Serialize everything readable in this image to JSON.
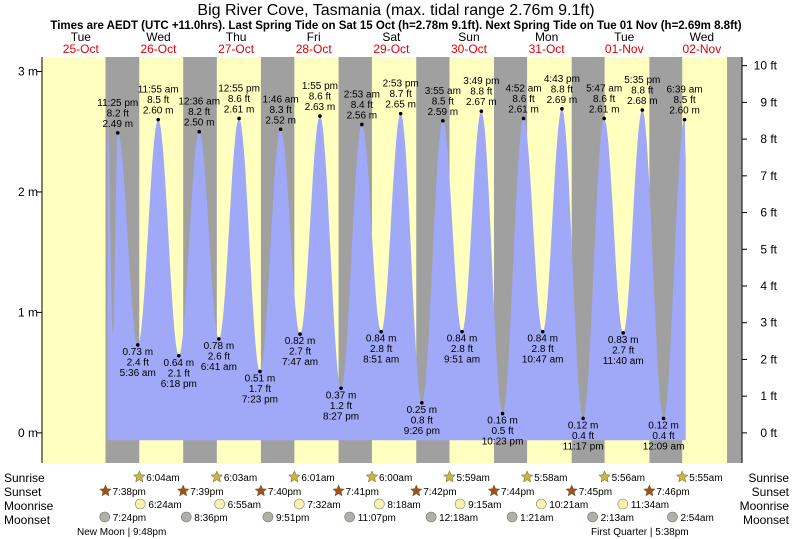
{
  "chart_data": {
    "type": "area",
    "title": "Big River Cove, Tasmania (max. tidal range 2.76m 9.1ft)",
    "subtitle": "Times are AEDT (UTC +11.0hrs). Last Spring Tide on Sat 15 Oct (h=2.78m 9.1ft). Next Spring Tide on Tue 01 Nov (h=2.69m 8.8ft)",
    "ylim_m": [
      -0.25,
      3.12
    ],
    "left_ticks": [
      "0 m",
      "1 m",
      "2 m",
      "3 m"
    ],
    "left_tick_values": [
      0,
      1,
      2,
      3
    ],
    "right_ticks": [
      "0 ft",
      "1 ft",
      "2 ft",
      "3 ft",
      "4 ft",
      "5 ft",
      "6 ft",
      "7 ft",
      "8 ft",
      "9 ft",
      "10 ft"
    ],
    "days": [
      {
        "dow": "Tue",
        "date": "25-Oct"
      },
      {
        "dow": "Wed",
        "date": "26-Oct"
      },
      {
        "dow": "Thu",
        "date": "27-Oct"
      },
      {
        "dow": "Fri",
        "date": "28-Oct"
      },
      {
        "dow": "Sat",
        "date": "29-Oct"
      },
      {
        "dow": "Sun",
        "date": "30-Oct"
      },
      {
        "dow": "Mon",
        "date": "31-Oct"
      },
      {
        "dow": "Tue",
        "date": "01-Nov"
      },
      {
        "dow": "Wed",
        "date": "02-Nov"
      }
    ],
    "tides": [
      {
        "type": "high",
        "t": 23.42,
        "h": 2.49,
        "time": "11:25 pm",
        "ft": "8.2 ft",
        "m": "2.49 m"
      },
      {
        "type": "low",
        "t": 29.6,
        "h": 0.73,
        "time": "5:36 am",
        "ft": "2.4 ft",
        "m": "0.73 m"
      },
      {
        "type": "high",
        "t": 35.92,
        "h": 2.6,
        "time": "11:55 am",
        "ft": "8.5 ft",
        "m": "2.60 m"
      },
      {
        "type": "low",
        "t": 42.3,
        "h": 0.64,
        "time": "6:18 pm",
        "ft": "2.1 ft",
        "m": "0.64 m"
      },
      {
        "type": "high",
        "t": 48.6,
        "h": 2.5,
        "time": "12:36 am",
        "ft": "8.2 ft",
        "m": "2.50 m"
      },
      {
        "type": "low",
        "t": 54.68,
        "h": 0.78,
        "time": "6:41 am",
        "ft": "2.6 ft",
        "m": "0.78 m"
      },
      {
        "type": "high",
        "t": 60.92,
        "h": 2.61,
        "time": "12:55 pm",
        "ft": "8.6 ft",
        "m": "2.61 m"
      },
      {
        "type": "low",
        "t": 67.38,
        "h": 0.51,
        "time": "7:23 pm",
        "ft": "1.7 ft",
        "m": "0.51 m"
      },
      {
        "type": "high",
        "t": 73.77,
        "h": 2.52,
        "time": "1:46 am",
        "ft": "8.3 ft",
        "m": "2.52 m"
      },
      {
        "type": "low",
        "t": 79.78,
        "h": 0.82,
        "time": "7:47 am",
        "ft": "2.7 ft",
        "m": "0.82 m"
      },
      {
        "type": "high",
        "t": 85.92,
        "h": 2.63,
        "time": "1:55 pm",
        "ft": "8.6 ft",
        "m": "2.63 m"
      },
      {
        "type": "low",
        "t": 92.45,
        "h": 0.37,
        "time": "8:27 pm",
        "ft": "1.2 ft",
        "m": "0.37 m"
      },
      {
        "type": "high",
        "t": 98.88,
        "h": 2.56,
        "time": "2:53 am",
        "ft": "8.4 ft",
        "m": "2.56 m"
      },
      {
        "type": "low",
        "t": 104.85,
        "h": 0.84,
        "time": "8:51 am",
        "ft": "2.8 ft",
        "m": "0.84 m"
      },
      {
        "type": "high",
        "t": 110.88,
        "h": 2.65,
        "time": "2:53 pm",
        "ft": "8.7 ft",
        "m": "2.65 m"
      },
      {
        "type": "low",
        "t": 117.43,
        "h": 0.25,
        "time": "9:26 pm",
        "ft": "0.8 ft",
        "m": "0.25 m"
      },
      {
        "type": "high",
        "t": 123.92,
        "h": 2.59,
        "time": "3:55 am",
        "ft": "8.5 ft",
        "m": "2.59 m"
      },
      {
        "type": "low",
        "t": 129.85,
        "h": 0.84,
        "time": "9:51 am",
        "ft": "2.8 ft",
        "m": "0.84 m"
      },
      {
        "type": "high",
        "t": 135.82,
        "h": 2.67,
        "time": "3:49 pm",
        "ft": "8.8 ft",
        "m": "2.67 m"
      },
      {
        "type": "low",
        "t": 142.38,
        "h": 0.16,
        "time": "10:23 pm",
        "ft": "0.5 ft",
        "m": "0.16 m"
      },
      {
        "type": "high",
        "t": 148.87,
        "h": 2.61,
        "time": "4:52 am",
        "ft": "8.6 ft",
        "m": "2.61 m"
      },
      {
        "type": "low",
        "t": 154.78,
        "h": 0.84,
        "time": "10:47 am",
        "ft": "2.8 ft",
        "m": "0.84 m"
      },
      {
        "type": "high",
        "t": 160.72,
        "h": 2.69,
        "time": "4:43 pm",
        "ft": "8.8 ft",
        "m": "2.69 m"
      },
      {
        "type": "low",
        "t": 167.28,
        "h": 0.12,
        "time": "11:17 pm",
        "ft": "0.4 ft",
        "m": "0.12 m"
      },
      {
        "type": "high",
        "t": 173.78,
        "h": 2.61,
        "time": "5:47 am",
        "ft": "8.6 ft",
        "m": "2.61 m"
      },
      {
        "type": "low",
        "t": 179.67,
        "h": 0.83,
        "time": "11:40 am",
        "ft": "2.7 ft",
        "m": "0.83 m"
      },
      {
        "type": "high",
        "t": 185.58,
        "h": 2.68,
        "time": "5:35 pm",
        "ft": "8.8 ft",
        "m": "2.68 m"
      },
      {
        "type": "low",
        "t": 192.15,
        "h": 0.12,
        "time": "12:09 am",
        "ft": "0.4 ft",
        "m": "0.12 m"
      },
      {
        "type": "high",
        "t": 198.65,
        "h": 2.6,
        "time": "6:39 am",
        "ft": "8.5 ft",
        "m": "2.60 m"
      }
    ],
    "night_spans": [
      [
        19.63,
        30.07
      ],
      [
        43.65,
        54.05
      ],
      [
        67.67,
        78.02
      ],
      [
        91.68,
        102.0
      ],
      [
        115.7,
        125.98
      ],
      [
        139.73,
        149.97
      ],
      [
        163.75,
        173.93
      ],
      [
        187.77,
        197.92
      ]
    ],
    "sunrise": [
      {
        "t": 30.07,
        "label": "6:04am"
      },
      {
        "t": 54.05,
        "label": "6:03am"
      },
      {
        "t": 78.02,
        "label": "6:01am"
      },
      {
        "t": 102.0,
        "label": "6:00am"
      },
      {
        "t": 125.98,
        "label": "5:59am"
      },
      {
        "t": 149.97,
        "label": "5:58am"
      },
      {
        "t": 173.93,
        "label": "5:56am"
      },
      {
        "t": 197.92,
        "label": "5:55am"
      }
    ],
    "sunset": [
      {
        "t": 19.63,
        "label": "7:38pm"
      },
      {
        "t": 43.65,
        "label": "7:39pm"
      },
      {
        "t": 67.67,
        "label": "7:40pm"
      },
      {
        "t": 91.68,
        "label": "7:41pm"
      },
      {
        "t": 115.7,
        "label": "7:42pm"
      },
      {
        "t": 139.73,
        "label": "7:44pm"
      },
      {
        "t": 163.75,
        "label": "7:45pm"
      },
      {
        "t": 187.77,
        "label": "7:46pm"
      }
    ],
    "moonrise": [
      {
        "t": 30.4,
        "label": "6:24am"
      },
      {
        "t": 54.92,
        "label": "6:55am"
      },
      {
        "t": 79.53,
        "label": "7:32am"
      },
      {
        "t": 104.3,
        "label": "8:18am"
      },
      {
        "t": 129.25,
        "label": "9:15am"
      },
      {
        "t": 154.35,
        "label": "10:21am"
      },
      {
        "t": 179.57,
        "label": "11:34am"
      }
    ],
    "moonset": [
      {
        "t": 19.4,
        "label": "7:24pm"
      },
      {
        "t": 44.6,
        "label": "8:36pm"
      },
      {
        "t": 69.85,
        "label": "9:51pm"
      },
      {
        "t": 95.12,
        "label": "11:07pm"
      },
      {
        "t": 120.3,
        "label": "12:18am"
      },
      {
        "t": 145.35,
        "label": "1:21am"
      },
      {
        "t": 170.22,
        "label": "2:13am"
      },
      {
        "t": 194.9,
        "label": "2:54am"
      }
    ],
    "row_labels": [
      "Sunrise",
      "Sunset",
      "Moonrise",
      "Moonset"
    ],
    "moon_phases": [
      "New Moon | 9:48pm",
      "First Quarter | 5:38pm"
    ],
    "colors": {
      "water": "#a0a8f8",
      "day": "#ffffc0",
      "night": "#a0a0a0",
      "day_label": "#e00000",
      "text": "#000000",
      "sun_star": "#c8b840",
      "sunset_star": "#a05020",
      "moonrise_disc": "#f8f0b0",
      "moonset_disc": "#b0b0a8"
    }
  }
}
